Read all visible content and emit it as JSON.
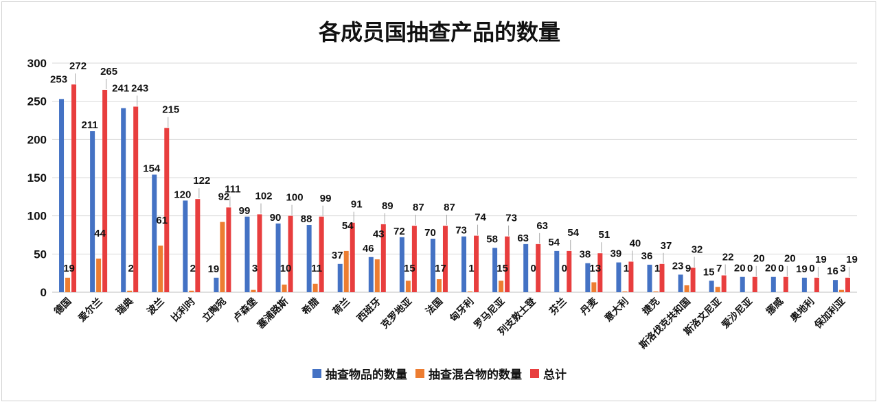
{
  "chart_data": {
    "type": "bar",
    "title": "各成员国抽查产品的数量",
    "xlabel": "",
    "ylabel": "",
    "ylim": [
      0,
      300
    ],
    "yticks": [
      0,
      50,
      100,
      150,
      200,
      250,
      300
    ],
    "grid": true,
    "legend_position": "bottom",
    "categories": [
      "德国",
      "爱尔兰",
      "瑞典",
      "波兰",
      "比利时",
      "立陶宛",
      "卢森堡",
      "塞浦路斯",
      "希腊",
      "荷兰",
      "西班牙",
      "克罗地亚",
      "法国",
      "匈牙利",
      "罗马尼亚",
      "列支敦士登",
      "芬兰",
      "丹麦",
      "意大利",
      "捷克",
      "斯洛伐克共和国",
      "斯洛文尼亚",
      "爱沙尼亚",
      "挪威",
      "奥地利",
      "保加利亚"
    ],
    "series": [
      {
        "name": "抽查物品的数量",
        "color": "#4472c4",
        "values": [
          253,
          211,
          241,
          154,
          120,
          19,
          99,
          90,
          88,
          37,
          46,
          72,
          70,
          73,
          58,
          63,
          54,
          38,
          39,
          36,
          23,
          15,
          20,
          20,
          19,
          16
        ]
      },
      {
        "name": "抽查混合物的数量",
        "color": "#ed7d31",
        "values": [
          19,
          44,
          2,
          61,
          2,
          92,
          3,
          10,
          11,
          54,
          43,
          15,
          17,
          1,
          15,
          0,
          0,
          13,
          1,
          1,
          9,
          7,
          0,
          0,
          0,
          3
        ]
      },
      {
        "name": "总计",
        "color": "#e83e3e",
        "values": [
          272,
          265,
          243,
          215,
          122,
          111,
          102,
          100,
          99,
          91,
          89,
          87,
          87,
          74,
          73,
          63,
          54,
          51,
          40,
          37,
          32,
          22,
          20,
          20,
          19,
          19
        ]
      }
    ]
  }
}
